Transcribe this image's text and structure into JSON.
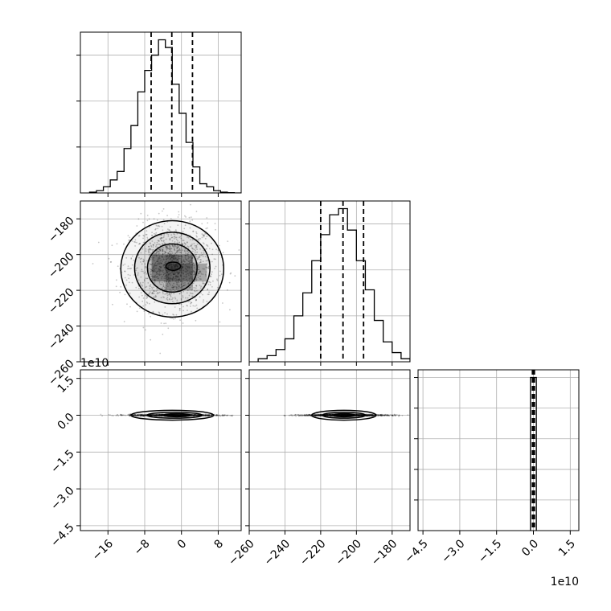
{
  "chart_data": {
    "type": "corner",
    "colors": {
      "ink": "#000000",
      "grid": "#b0b0b0",
      "scatter": "#000000"
    },
    "grid": true,
    "params": [
      {
        "range": [
          -22,
          13
        ],
        "ticks": [
          -16,
          -8,
          0,
          8
        ],
        "tick_labels": [
          "−16",
          "−8",
          "0",
          "8"
        ],
        "offset": ""
      },
      {
        "range": [
          -260,
          -170
        ],
        "ticks": [
          -260,
          -240,
          -220,
          -200,
          -180
        ],
        "tick_labels": [
          "−260",
          "−240",
          "−220",
          "−200",
          "−180"
        ],
        "offset": ""
      },
      {
        "range": [
          -4.7,
          1.85
        ],
        "ticks": [
          -4.5,
          -3.0,
          -1.5,
          0.0,
          1.5
        ],
        "tick_labels": [
          "−4.5",
          "−3.0",
          "−1.5",
          "0.0",
          "1.5"
        ],
        "offset": "1e10"
      }
    ],
    "panels": [
      {
        "type": "hist",
        "row": 0,
        "col": 0,
        "bins": [
          -20,
          -18.5,
          -17,
          -15.5,
          -14,
          -12.5,
          -11,
          -9.5,
          -8,
          -6.5,
          -5,
          -3.5,
          -2,
          -0.5,
          1,
          2.5,
          4,
          5.5,
          7,
          8.5,
          10,
          11.5,
          13
        ],
        "counts": [
          0.005,
          0.015,
          0.04,
          0.085,
          0.14,
          0.29,
          0.44,
          0.66,
          0.8,
          0.9,
          1.0,
          0.95,
          0.71,
          0.52,
          0.33,
          0.17,
          0.06,
          0.04,
          0.015,
          0.005,
          0.002,
          0.0
        ],
        "y_ticks": [
          0.3,
          0.6,
          0.9
        ],
        "quantiles": [
          -6.6,
          -2.1,
          2.4
        ]
      },
      {
        "type": "hist2d",
        "row": 1,
        "col": 0,
        "x_param": 0,
        "y_param": 1,
        "center": [
          -2,
          -207
        ],
        "sigma": [
          4.6,
          12
        ],
        "contours": [
          {
            "rx": 1.6,
            "ry": 2.3,
            "cx": -1.8,
            "cy": -206.5
          },
          {
            "rx": 5.4,
            "ry": 13.5,
            "cx": -2.0,
            "cy": -207.5
          },
          {
            "rx": 8.2,
            "ry": 20.0,
            "cx": -2.0,
            "cy": -207.5
          },
          {
            "rx": 11.2,
            "ry": 27.0,
            "cx": -2.0,
            "cy": -208.0
          }
        ],
        "grid_cells": [
          {
            "x": -6.5,
            "y": -200,
            "w": 3,
            "h": 5,
            "shade": 0.65
          },
          {
            "x": -3.5,
            "y": -200,
            "w": 3,
            "h": 5,
            "shade": 0.75
          },
          {
            "x": -0.5,
            "y": -200,
            "w": 3,
            "h": 5,
            "shade": 0.55
          },
          {
            "x": -6.5,
            "y": -205,
            "w": 3,
            "h": 5,
            "shade": 0.7
          },
          {
            "x": -3.5,
            "y": -205,
            "w": 3,
            "h": 5,
            "shade": 0.9
          },
          {
            "x": -0.5,
            "y": -205,
            "w": 3,
            "h": 5,
            "shade": 0.85
          },
          {
            "x": 2.5,
            "y": -205,
            "w": 3,
            "h": 5,
            "shade": 0.45
          },
          {
            "x": -6.5,
            "y": -210,
            "w": 3,
            "h": 5,
            "shade": 0.6
          },
          {
            "x": -3.5,
            "y": -210,
            "w": 3,
            "h": 5,
            "shade": 0.8
          },
          {
            "x": -0.5,
            "y": -210,
            "w": 3,
            "h": 5,
            "shade": 0.75
          },
          {
            "x": 2.5,
            "y": -210,
            "w": 3,
            "h": 5,
            "shade": 0.4
          },
          {
            "x": -3.5,
            "y": -215,
            "w": 3,
            "h": 5,
            "shade": 0.45
          },
          {
            "x": -0.5,
            "y": -215,
            "w": 3,
            "h": 5,
            "shade": 0.4
          }
        ]
      },
      {
        "type": "hist",
        "row": 1,
        "col": 1,
        "bins": [
          -255,
          -250,
          -245,
          -240,
          -235,
          -230,
          -225,
          -220,
          -215,
          -210,
          -205,
          -200,
          -195,
          -190,
          -185,
          -180,
          -175,
          -170
        ],
        "counts": [
          0.02,
          0.04,
          0.08,
          0.15,
          0.3,
          0.45,
          0.66,
          0.83,
          0.96,
          1.0,
          0.86,
          0.66,
          0.47,
          0.27,
          0.13,
          0.06,
          0.02
        ],
        "y_ticks": [
          0.3,
          0.6,
          0.9
        ],
        "quantiles": [
          -220,
          -207.5,
          -196
        ]
      },
      {
        "type": "hist2d",
        "row": 2,
        "col": 0,
        "x_param": 0,
        "y_param": 2,
        "center": [
          -2,
          0
        ],
        "sigma": [
          4.6,
          0.015
        ],
        "contours": [
          {
            "rx": 3.0,
            "ry": 0.06,
            "cx": -1.0,
            "cy": 0.0
          },
          {
            "rx": 6.0,
            "ry": 0.12,
            "cx": -1.5,
            "cy": 0.0
          },
          {
            "rx": 9.0,
            "ry": 0.2,
            "cx": -2.0,
            "cy": 0.0
          }
        ],
        "grid_cells": []
      },
      {
        "type": "hist2d",
        "row": 2,
        "col": 1,
        "x_param": 1,
        "y_param": 2,
        "center": [
          -207,
          0
        ],
        "sigma": [
          12,
          0.015
        ],
        "contours": [
          {
            "rx": 6.0,
            "ry": 0.06,
            "cx": -207.0,
            "cy": 0.0
          },
          {
            "rx": 12.0,
            "ry": 0.12,
            "cx": -207.0,
            "cy": 0.0
          },
          {
            "rx": 18.0,
            "ry": 0.2,
            "cx": -207.0,
            "cy": 0.0
          }
        ],
        "grid_cells": [
          {
            "x": -215,
            "y": 0.1,
            "w": 16,
            "h": 0.2,
            "shade": 0.4
          }
        ]
      },
      {
        "type": "hist",
        "row": 2,
        "col": 2,
        "bins": [
          -0.12,
          0.0,
          0.12
        ],
        "counts": [
          1.0,
          1.0
        ],
        "y_ticks": [
          0.2,
          0.4,
          0.6,
          0.8,
          1.0
        ],
        "quantiles": [
          -0.04,
          0.0,
          0.04
        ]
      }
    ]
  }
}
